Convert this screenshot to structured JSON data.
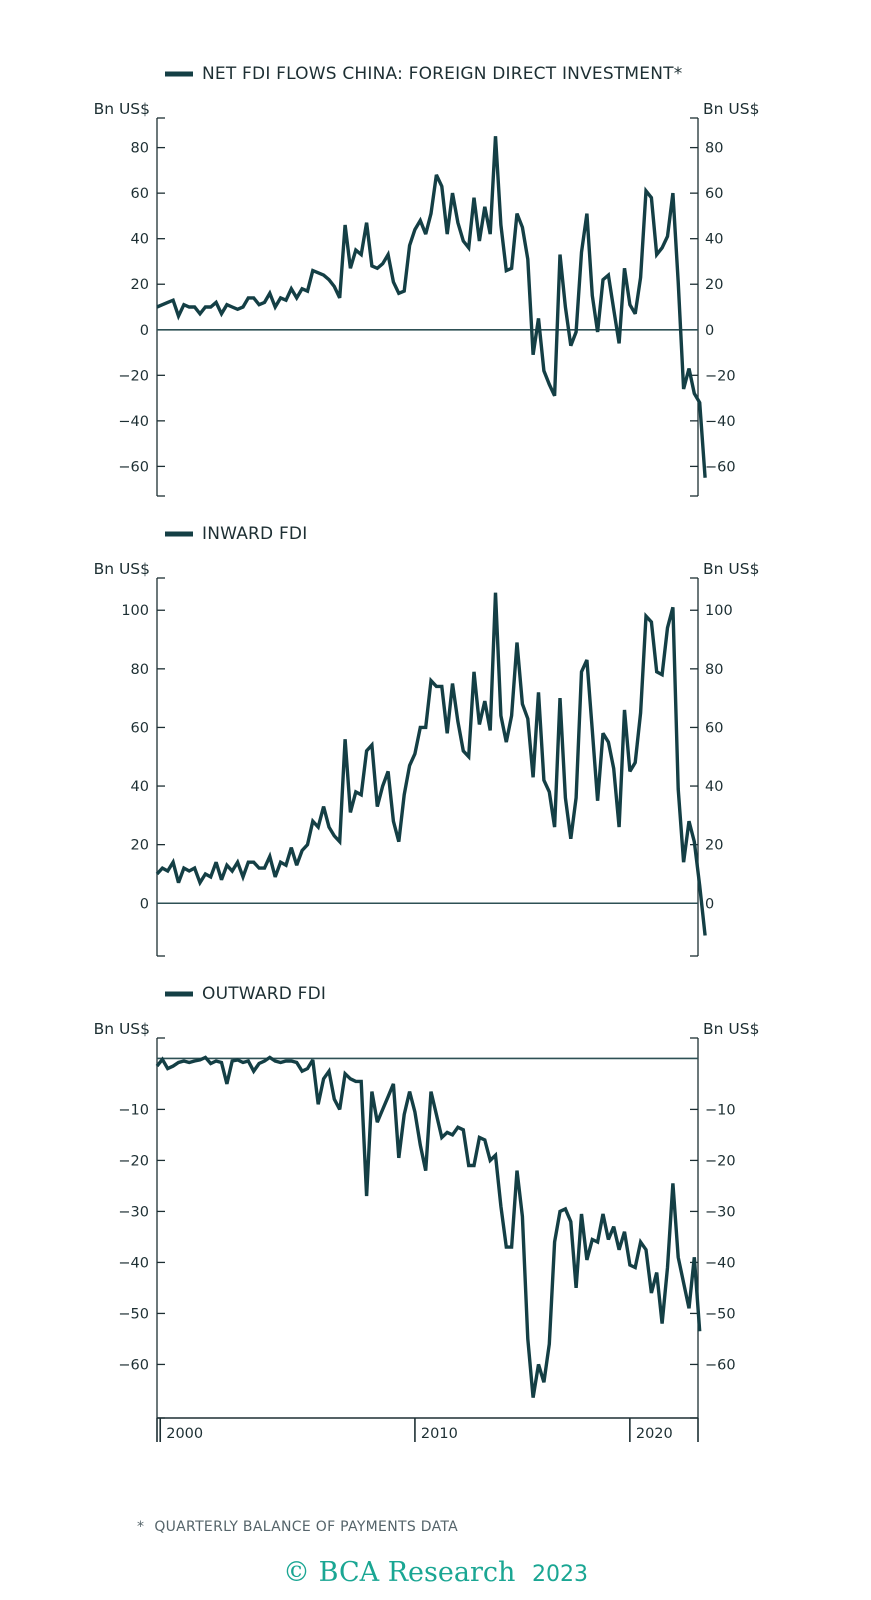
{
  "footnote": {
    "marker": "*",
    "text": "QUARTERLY BALANCE OF PAYMENTS DATA"
  },
  "copyright": {
    "symbol": "©",
    "brand": "BCA",
    "word": "Research",
    "year": "2023",
    "color": "#1aa693"
  },
  "colors": {
    "line": "#143f45",
    "axis": "#1d2f33",
    "zero_line": "#2e5055"
  },
  "chart_data": [
    {
      "type": "line",
      "title": "NET FDI FLOWS CHINA: FOREIGN DIRECT INVESTMENT*",
      "left_unit": "Bn US$",
      "right_unit": "Bn US$",
      "ylim": [
        -73,
        93
      ],
      "yticks": [
        80,
        60,
        40,
        20,
        0,
        -20,
        -40,
        -60
      ],
      "tick_labels": [
        "80",
        "60",
        "40",
        "20",
        "0",
        "−20",
        "−40",
        "−60"
      ],
      "reference_line": 0,
      "x_start": 1998,
      "x_step": 0.25,
      "series": [
        {
          "values": [
            10,
            11,
            12,
            13,
            6,
            11,
            10,
            10,
            7,
            10,
            10,
            12,
            7,
            11,
            10,
            9,
            10,
            14,
            14,
            11,
            12,
            16,
            10,
            14,
            13,
            18,
            14,
            18,
            17,
            26,
            25,
            24,
            22,
            19,
            14,
            46,
            27,
            35,
            33,
            47,
            28,
            27,
            29,
            33,
            21,
            16,
            17,
            37,
            44,
            48,
            42,
            51,
            68,
            63,
            42,
            60,
            47,
            39,
            36,
            58,
            39,
            54,
            42,
            85,
            46,
            26,
            27,
            51,
            45,
            31,
            -11,
            5,
            -18,
            -24,
            -29,
            33,
            10,
            -7,
            -1,
            34,
            51,
            15,
            -1,
            22,
            24,
            9,
            -6,
            27,
            11,
            7,
            23,
            61,
            58,
            33,
            36,
            41,
            60,
            21,
            -26,
            -17,
            -28,
            -32,
            -65
          ]
        }
      ]
    },
    {
      "type": "line",
      "title": "INWARD FDI",
      "left_unit": "Bn US$",
      "right_unit": "Bn US$",
      "ylim": [
        -18,
        111
      ],
      "yticks": [
        100,
        80,
        60,
        40,
        20,
        0
      ],
      "tick_labels": [
        "100",
        "80",
        "60",
        "40",
        "20",
        "0"
      ],
      "reference_line": 0,
      "x_start": 1998,
      "x_step": 0.25,
      "series": [
        {
          "values": [
            10,
            12,
            11,
            14,
            7,
            12,
            11,
            12,
            7,
            10,
            9,
            14,
            8,
            13,
            11,
            14,
            9,
            14,
            14,
            12,
            12,
            16,
            9,
            14,
            13,
            19,
            13,
            18,
            20,
            28,
            26,
            33,
            26,
            23,
            21,
            56,
            31,
            38,
            37,
            52,
            54,
            33,
            40,
            45,
            28,
            21,
            37,
            47,
            51,
            60,
            60,
            76,
            74,
            74,
            58,
            75,
            62,
            52,
            50,
            79,
            61,
            69,
            59,
            106,
            64,
            55,
            64,
            89,
            68,
            63,
            43,
            72,
            42,
            38,
            26,
            70,
            36,
            22,
            36,
            79,
            83,
            59,
            35,
            58,
            55,
            46,
            26,
            66,
            45,
            48,
            65,
            98,
            96,
            79,
            78,
            94,
            101,
            39,
            14,
            28,
            21,
            6,
            -11
          ]
        }
      ]
    },
    {
      "type": "line",
      "title": "OUTWARD FDI",
      "left_unit": "Bn US$",
      "right_unit": "Bn US$",
      "ylim": [
        -70.5,
        4
      ],
      "yticks": [
        -10,
        -20,
        -30,
        -40,
        -50,
        -60
      ],
      "tick_labels": [
        "−10",
        "−20",
        "−30",
        "−40",
        "−50",
        "−60"
      ],
      "reference_line": 0,
      "x_labels": [
        "2000",
        "2010",
        "2020"
      ],
      "x_label_values": [
        2000,
        2010,
        2020
      ],
      "x_tick_values": [
        1998.15,
        2010,
        2020
      ],
      "x_axis_start": 1998,
      "x_axis_end": 2023.17,
      "x_start": 1998,
      "x_step": 0.25,
      "series": [
        {
          "values": [
            -1.5,
            -0.2,
            -2,
            -1.5,
            -0.8,
            -0.5,
            -0.8,
            -0.5,
            -0.3,
            0.2,
            -1,
            -0.5,
            -0.8,
            -5,
            -0.5,
            -0.3,
            -0.8,
            -0.5,
            -2.5,
            -1,
            -0.5,
            0.2,
            -0.5,
            -0.8,
            -0.5,
            -0.5,
            -0.8,
            -2.5,
            -2,
            -0.3,
            -9,
            -4,
            -2.5,
            -8,
            -10,
            -3,
            -4,
            -4.5,
            -4.5,
            -27,
            -6.5,
            -12.5,
            -10,
            -7.5,
            -5,
            -19.5,
            -11,
            -6.5,
            -10.5,
            -17,
            -22,
            -6.5,
            -11,
            -15.5,
            -14.5,
            -15,
            -13.5,
            -14,
            -21,
            -21,
            -15.5,
            -16,
            -20,
            -19,
            -29,
            -37,
            -37,
            -22,
            -31,
            -55,
            -66.5,
            -60,
            -63.5,
            -56,
            -36,
            -30,
            -29.5,
            -32,
            -45,
            -30.5,
            -39.5,
            -35.5,
            -36,
            -30.5,
            -35.5,
            -33,
            -37.5,
            -34,
            -40.5,
            -41,
            -36,
            -37.5,
            -46,
            -42,
            -52,
            -41,
            -24.5,
            -39,
            -44,
            -49,
            -39,
            -53.5
          ]
        }
      ]
    }
  ]
}
